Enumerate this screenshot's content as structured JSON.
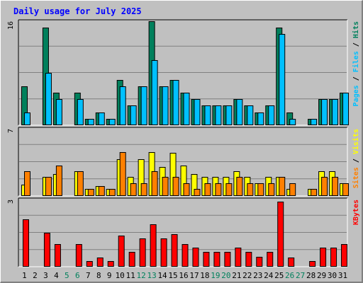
{
  "chart_data": {
    "type": "bar",
    "title": "Daily usage for July 2025",
    "categories": [
      "1",
      "2",
      "3",
      "4",
      "5",
      "6",
      "7",
      "8",
      "9",
      "10",
      "11",
      "12",
      "13",
      "14",
      "15",
      "16",
      "17",
      "18",
      "19",
      "20",
      "21",
      "22",
      "23",
      "24",
      "25",
      "26",
      "27",
      "28",
      "29",
      "30",
      "31"
    ],
    "weekend_days": [
      "5",
      "6",
      "12",
      "13",
      "19",
      "20",
      "26",
      "27"
    ],
    "grid": true,
    "panels": [
      {
        "name": "hits_files_pages",
        "ymax_label": "16",
        "ylim": [
          0,
          16
        ],
        "legend": [
          "Pages",
          "Files",
          "Hits"
        ],
        "series": [
          {
            "name": "Hits",
            "color": "#00805c",
            "values": [
              6,
              0,
              15,
              5,
              0,
              5,
              1,
              2,
              1,
              7,
              3,
              6,
              16,
              6,
              7,
              5,
              4,
              3,
              3,
              3,
              4,
              3,
              2,
              3,
              15,
              2,
              0,
              1,
              4,
              4,
              5
            ]
          },
          {
            "name": "Files",
            "color": "#00c0ff",
            "values": [
              2,
              0,
              8,
              4,
              0,
              4,
              1,
              2,
              1,
              6,
              3,
              6,
              10,
              6,
              7,
              5,
              4,
              3,
              3,
              3,
              4,
              3,
              2,
              3,
              14,
              1,
              0,
              1,
              4,
              4,
              5
            ]
          }
        ]
      },
      {
        "name": "visits_sites",
        "ymax_label": "7",
        "ylim": [
          0,
          7
        ],
        "legend": [
          "Sites",
          "Visits"
        ],
        "series": [
          {
            "name": "Visits",
            "color": "#ffff00",
            "values": [
              1.2,
              0,
              2,
              2.3,
              0,
              2.6,
              0.7,
              1,
              0.7,
              3.8,
              2,
              3.8,
              4.6,
              3,
              4.5,
              3.2,
              2.3,
              2,
              2,
              2,
              2.6,
              2,
              1.3,
              2,
              2,
              0.7,
              0,
              0.7,
              2.6,
              2.6,
              1.3
            ]
          },
          {
            "name": "Sites",
            "color": "#ff8000",
            "values": [
              2.6,
              0,
              2,
              3.2,
              0,
              2.6,
              0.7,
              1,
              0.7,
              4.6,
              1.3,
              1.3,
              2.6,
              2,
              2,
              1.3,
              0.7,
              1.3,
              1.3,
              1.3,
              2,
              1.3,
              1.3,
              1.3,
              2,
              1.3,
              0,
              0.7,
              2,
              2,
              1.3
            ]
          }
        ]
      },
      {
        "name": "kbytes",
        "ymax_label": "3",
        "ylim": [
          0,
          3
        ],
        "legend": [
          "KBytes"
        ],
        "series": [
          {
            "name": "KBytes",
            "color": "#ff0000",
            "values": [
              2.1,
              0,
              1.5,
              1,
              0,
              1,
              0.25,
              0.4,
              0.25,
              1.4,
              0.65,
              1.25,
              1.9,
              1.25,
              1.45,
              1,
              0.85,
              0.65,
              0.65,
              0.65,
              0.85,
              0.65,
              0.45,
              0.65,
              2.9,
              0.4,
              0,
              0.25,
              0.85,
              0.85,
              1
            ]
          }
        ]
      }
    ]
  }
}
